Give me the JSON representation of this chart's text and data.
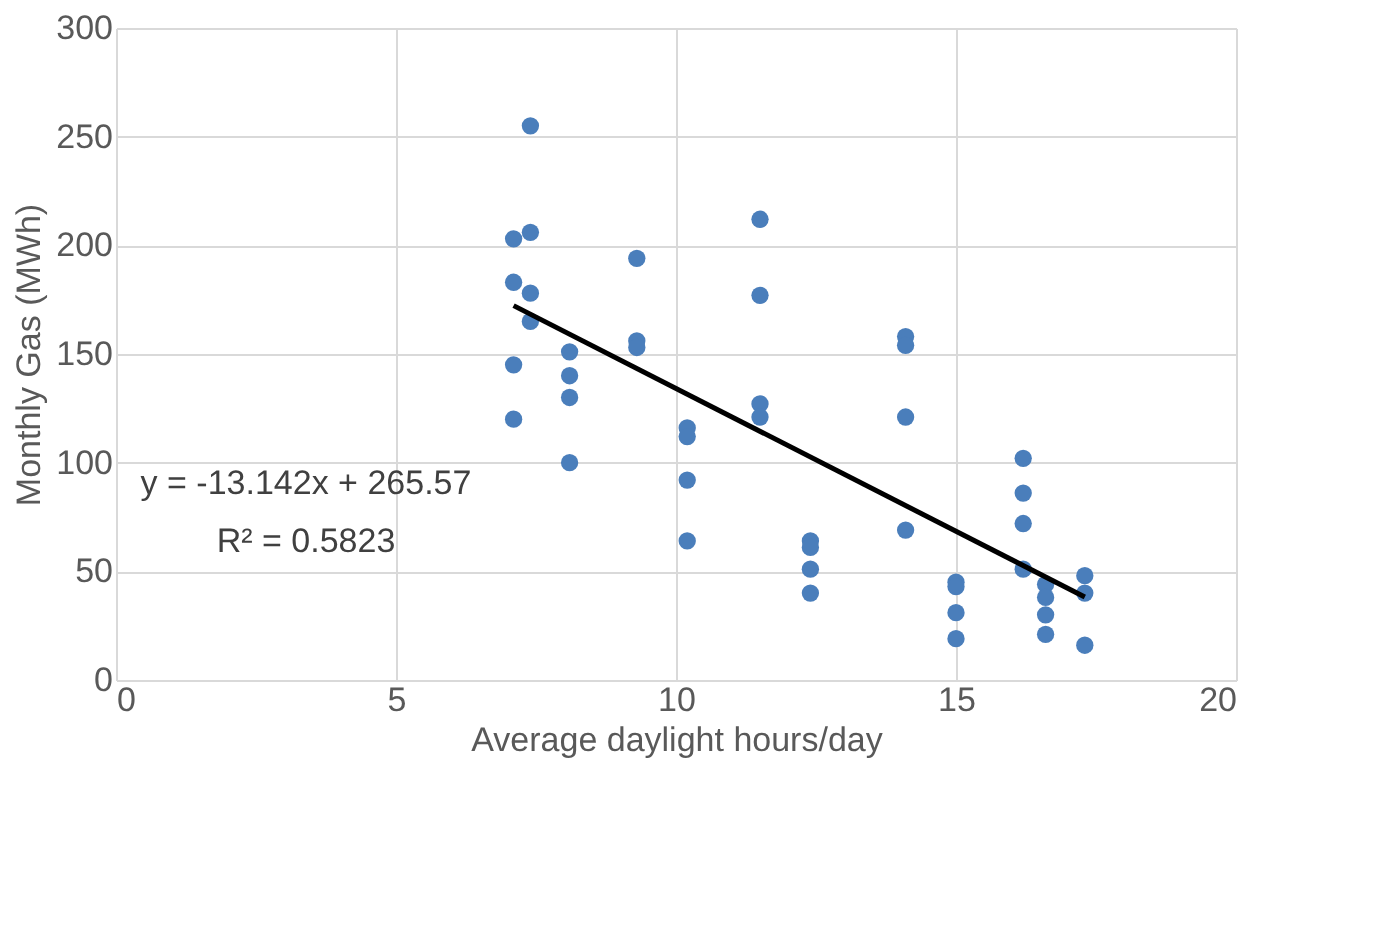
{
  "chart_data": {
    "type": "scatter",
    "xlabel": "Average daylight hours/day",
    "ylabel": "Monthly Gas (MWh)",
    "xlim": [
      0,
      20
    ],
    "xticks": [
      0,
      5,
      10,
      15,
      20
    ],
    "ylim": [
      0,
      300
    ],
    "yticks": [
      0,
      50,
      100,
      150,
      200,
      250,
      300
    ],
    "grid": true,
    "marker": "circle",
    "annotations": [
      "y = -13.142x + 265.57",
      "R² = 0.5823"
    ],
    "series": [
      {
        "color": "#4a7ebb",
        "x": [
          7.1,
          7.1,
          7.1,
          7.1,
          7.4,
          7.4,
          7.4,
          7.4,
          8.1,
          8.1,
          8.1,
          8.1,
          9.3,
          9.3,
          9.3,
          10.2,
          10.2,
          10.2,
          10.2,
          11.5,
          11.5,
          11.5,
          11.5,
          12.4,
          12.4,
          12.4,
          12.4,
          14.1,
          14.1,
          14.1,
          14.1,
          15.0,
          15.0,
          15.0,
          15.0,
          16.2,
          16.2,
          16.2,
          16.2,
          16.6,
          16.6,
          16.6,
          16.6,
          17.3,
          17.3,
          17.3
        ],
        "values": [
          203,
          183,
          145,
          120,
          255,
          206,
          178,
          165,
          151,
          140,
          130,
          100,
          194,
          156,
          153,
          116,
          112,
          92,
          64,
          212,
          177,
          127,
          121,
          64,
          61,
          51,
          40,
          158,
          154,
          121,
          69,
          45,
          43,
          31,
          19,
          102,
          86,
          72,
          51,
          44,
          38,
          30,
          21,
          48,
          40,
          16
        ]
      },
      {
        "type": "line",
        "color": "#000000",
        "line_style": "solid",
        "marker": "none",
        "x": [
          7.1,
          17.3
        ],
        "values": [
          172.26,
          38.21
        ]
      }
    ]
  }
}
